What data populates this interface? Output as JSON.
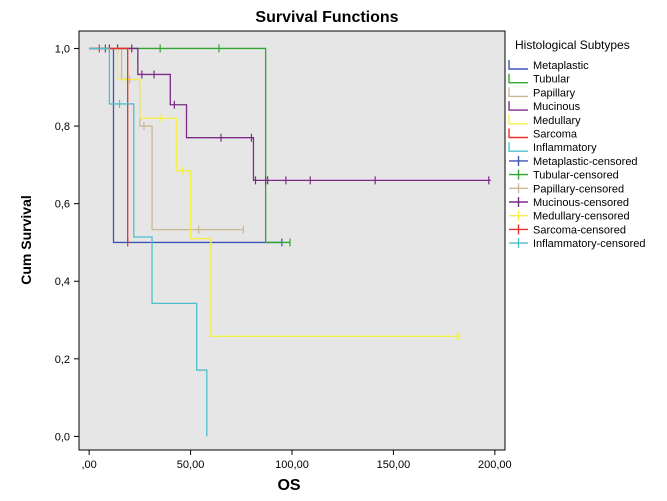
{
  "chart_data": {
    "type": "line",
    "title": "Survival Functions",
    "xlabel": "OS",
    "ylabel": "Cum Survival",
    "xlim": [
      -5,
      205
    ],
    "ylim": [
      -0.035,
      1.045
    ],
    "xticks": [
      0,
      50,
      100,
      150,
      200
    ],
    "xtick_labels": [
      ",00",
      "50,00",
      "100,00",
      "150,00",
      "200,00"
    ],
    "yticks": [
      0,
      0.2,
      0.4,
      0.6,
      0.8,
      1.0
    ],
    "ytick_labels": [
      "0,0",
      "0,2",
      "0,4",
      "0,6",
      "0,8",
      "1,0"
    ],
    "plot_background": "#e6e6e6",
    "grid": false,
    "step": true,
    "legend_position": "right",
    "legend_title": "Histological Subtypes",
    "legend_entries": [
      {
        "label": "Metaplastic",
        "color": "#3d55b6",
        "kind": "line"
      },
      {
        "label": "Tubular",
        "color": "#2fa62f",
        "kind": "line"
      },
      {
        "label": "Papillary",
        "color": "#cbb892",
        "kind": "line"
      },
      {
        "label": "Mucinous",
        "color": "#7b2b85",
        "kind": "line"
      },
      {
        "label": "Medullary",
        "color": "#f3ee4a",
        "kind": "line"
      },
      {
        "label": "Sarcoma",
        "color": "#e8312b",
        "kind": "line"
      },
      {
        "label": "Inflammatory",
        "color": "#4fbfcc",
        "kind": "line"
      },
      {
        "label": "Metaplastic-censored",
        "color": "#3d55b6",
        "kind": "censor"
      },
      {
        "label": "Tubular-censored",
        "color": "#2fa62f",
        "kind": "censor"
      },
      {
        "label": "Papillary-censored",
        "color": "#cbb892",
        "kind": "censor"
      },
      {
        "label": "Mucinous-censored",
        "color": "#7b2b85",
        "kind": "censor"
      },
      {
        "label": "Medullary-censored",
        "color": "#f3ee4a",
        "kind": "censor"
      },
      {
        "label": "Sarcoma-censored",
        "color": "#e8312b",
        "kind": "censor"
      },
      {
        "label": "Inflammatory-censored",
        "color": "#4fbfcc",
        "kind": "censor"
      }
    ],
    "series": [
      {
        "name": "Metaplastic",
        "color": "#3d55b6",
        "steps": [
          [
            0,
            1.0
          ],
          [
            12,
            0.5
          ],
          [
            95,
            0.5
          ]
        ],
        "censored": [
          [
            8,
            1.0
          ],
          [
            95,
            0.5
          ]
        ]
      },
      {
        "name": "Tubular",
        "color": "#2fa62f",
        "steps": [
          [
            0,
            1.0
          ],
          [
            87,
            0.5
          ],
          [
            99,
            0.5
          ]
        ],
        "censored": [
          [
            35,
            1.0
          ],
          [
            64,
            1.0
          ],
          [
            99,
            0.5
          ]
        ]
      },
      {
        "name": "Papillary",
        "color": "#cbb892",
        "steps": [
          [
            0,
            1.0
          ],
          [
            16,
            0.92
          ],
          [
            25,
            0.8
          ],
          [
            31,
            0.533
          ],
          [
            76,
            0.533
          ]
        ],
        "censored": [
          [
            20,
            0.92
          ],
          [
            27,
            0.8
          ],
          [
            54,
            0.533
          ],
          [
            76,
            0.533
          ]
        ]
      },
      {
        "name": "Mucinous",
        "color": "#7b2b85",
        "steps": [
          [
            0,
            1.0
          ],
          [
            24,
            0.933
          ],
          [
            40,
            0.855
          ],
          [
            48,
            0.77
          ],
          [
            81,
            0.66
          ],
          [
            198,
            0.66
          ]
        ],
        "censored": [
          [
            10,
            1.0
          ],
          [
            14,
            1.0
          ],
          [
            21,
            1.0
          ],
          [
            26,
            0.933
          ],
          [
            32,
            0.933
          ],
          [
            42,
            0.855
          ],
          [
            65,
            0.77
          ],
          [
            80,
            0.77
          ],
          [
            82,
            0.66
          ],
          [
            87,
            0.66
          ],
          [
            88,
            0.66
          ],
          [
            97,
            0.66
          ],
          [
            109,
            0.66
          ],
          [
            141,
            0.66
          ],
          [
            197,
            0.66
          ]
        ]
      },
      {
        "name": "Medullary",
        "color": "#f3ee4a",
        "steps": [
          [
            0,
            1.0
          ],
          [
            14,
            0.92
          ],
          [
            25,
            0.82
          ],
          [
            43,
            0.685
          ],
          [
            50,
            0.51
          ],
          [
            60,
            0.258
          ],
          [
            183,
            0.258
          ]
        ],
        "censored": [
          [
            19,
            1.0
          ],
          [
            18,
            0.92
          ],
          [
            35,
            0.82
          ],
          [
            46,
            0.685
          ],
          [
            182,
            0.258
          ]
        ]
      },
      {
        "name": "Sarcoma",
        "color": "#e8312b",
        "steps": [
          [
            0,
            1.0
          ],
          [
            19,
            0.5
          ]
        ],
        "censored": [
          [
            5,
            1.0
          ],
          [
            19,
            0.5
          ]
        ]
      },
      {
        "name": "Inflammatory",
        "color": "#4fbfcc",
        "steps": [
          [
            0,
            1.0
          ],
          [
            10,
            0.857
          ],
          [
            20,
            0.857
          ],
          [
            22,
            0.514
          ],
          [
            31,
            0.514
          ],
          [
            31,
            0.343
          ],
          [
            53,
            0.343
          ],
          [
            53,
            0.171
          ],
          [
            57,
            0.171
          ],
          [
            58,
            0.0
          ]
        ],
        "censored": [
          [
            15,
            0.857
          ]
        ]
      }
    ]
  }
}
